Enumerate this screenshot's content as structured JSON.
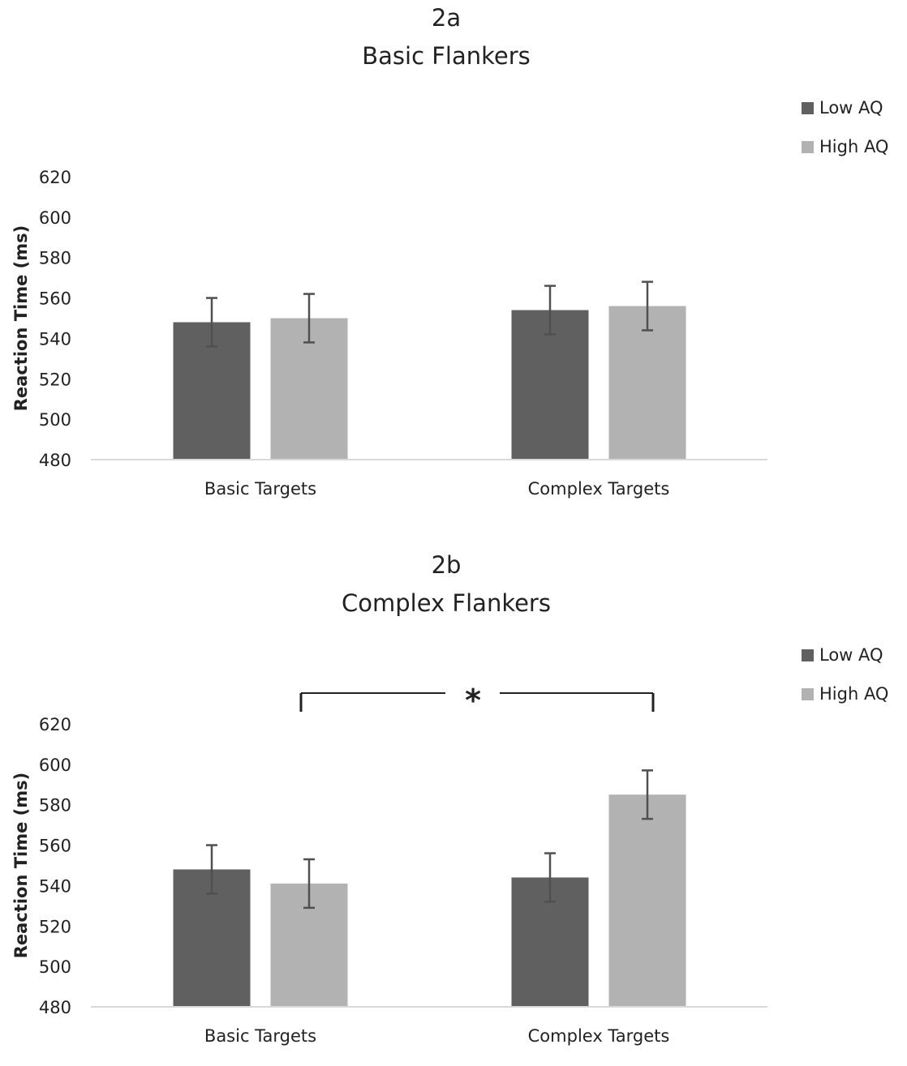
{
  "colors": {
    "low_aq": "#606060",
    "high_aq": "#b2b2b2",
    "axis": "#d9d9d9",
    "error_bar": "#505050",
    "bracket": "#222222"
  },
  "chart_data": [
    {
      "type": "bar",
      "panel_label": "2a",
      "title": "Basic Flankers",
      "xlabel": "",
      "ylabel": "Reaction Time (ms)",
      "ylim": [
        480,
        620
      ],
      "yticks": [
        480,
        500,
        520,
        540,
        560,
        580,
        600,
        620
      ],
      "grid": false,
      "legend_position": "top-right",
      "categories": [
        "Basic Targets",
        "Complex Targets"
      ],
      "series": [
        {
          "name": "Low AQ",
          "values": [
            548,
            554
          ],
          "error": [
            12,
            12
          ]
        },
        {
          "name": "High AQ",
          "values": [
            550,
            556
          ],
          "error": [
            12,
            12
          ]
        }
      ],
      "annotation": ""
    },
    {
      "type": "bar",
      "panel_label": "2b",
      "title": "Complex Flankers",
      "xlabel": "",
      "ylabel": "Reaction Time (ms)",
      "ylim": [
        480,
        620
      ],
      "yticks": [
        480,
        500,
        520,
        540,
        560,
        580,
        600,
        620
      ],
      "grid": false,
      "legend_position": "top-right",
      "categories": [
        "Basic Targets",
        "Complex Targets"
      ],
      "series": [
        {
          "name": "Low AQ",
          "values": [
            548,
            544
          ],
          "error": [
            12,
            12
          ]
        },
        {
          "name": "High AQ",
          "values": [
            541,
            585
          ],
          "error": [
            12,
            12
          ]
        }
      ],
      "annotation": "*"
    }
  ]
}
